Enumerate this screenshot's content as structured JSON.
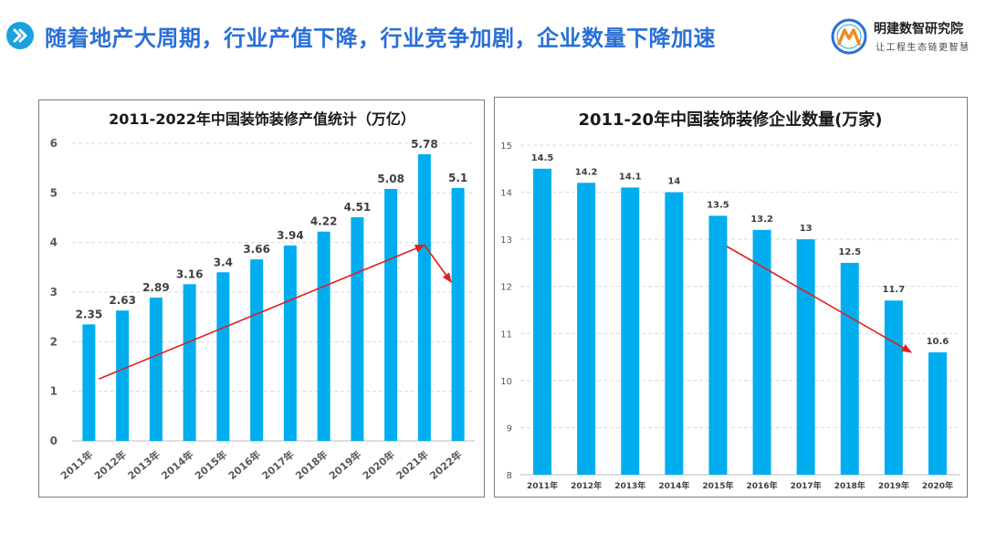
{
  "header": {
    "title": "随着地产大周期，行业产值下降，行业竞争加剧，企业数量下降加速",
    "title_icon": "double-chevron-right-icon",
    "accent_color": "#2a6fd6"
  },
  "logo": {
    "name": "明建数智研究院",
    "slogan": "让工程生态链更智慧",
    "icon": "mountain-emblem-icon"
  },
  "chart_data": [
    {
      "type": "bar",
      "title": "2011-2022年中国装饰装修产值统计（万亿）",
      "categories": [
        "2011年",
        "2012年",
        "2013年",
        "2014年",
        "2015年",
        "2016年",
        "2017年",
        "2018年",
        "2019年",
        "2020年",
        "2021年",
        "2022年"
      ],
      "values": [
        2.35,
        2.63,
        2.89,
        3.16,
        3.4,
        3.66,
        3.94,
        4.22,
        4.51,
        5.08,
        5.78,
        5.1
      ],
      "value_labels": [
        "2.35",
        "2.63",
        "2.89",
        "3.16",
        "3.4",
        "3.66",
        "3.94",
        "4.22",
        "4.51",
        "5.08",
        "5.78",
        "5.1"
      ],
      "y_ticks": [
        "0",
        "1",
        "2",
        "3",
        "4",
        "5",
        "6"
      ],
      "ylim": [
        0,
        6
      ],
      "grid": true,
      "bar_color": "#00aeef",
      "trend_color": "#e02020",
      "trend_arrows": [
        {
          "from": [
            0.3,
            1.25
          ],
          "to": [
            10,
            3.95
          ]
        },
        {
          "from": [
            10,
            3.95
          ],
          "to": [
            10.8,
            3.2
          ]
        }
      ]
    },
    {
      "type": "bar",
      "title": "2011-20年中国装饰装修企业数量(万家)",
      "categories": [
        "2011年",
        "2012年",
        "2013年",
        "2014年",
        "2015年",
        "2016年",
        "2017年",
        "2018年",
        "2019年",
        "2020年"
      ],
      "values": [
        14.5,
        14.2,
        14.1,
        14,
        13.5,
        13.2,
        13,
        12.5,
        11.7,
        10.6
      ],
      "value_labels": [
        "14.5",
        "14.2",
        "14.1",
        "14",
        "13.5",
        "13.2",
        "13",
        "12.5",
        "11.7",
        "10.6"
      ],
      "y_ticks": [
        "8",
        "9",
        "10",
        "11",
        "12",
        "13",
        "14",
        "15"
      ],
      "ylim": [
        8,
        15
      ],
      "grid": true,
      "bar_color": "#00aeef",
      "trend_color": "#e02020",
      "trend_arrows": [
        {
          "from": [
            4.2,
            12.85
          ],
          "to": [
            8.4,
            10.6
          ]
        }
      ]
    }
  ]
}
